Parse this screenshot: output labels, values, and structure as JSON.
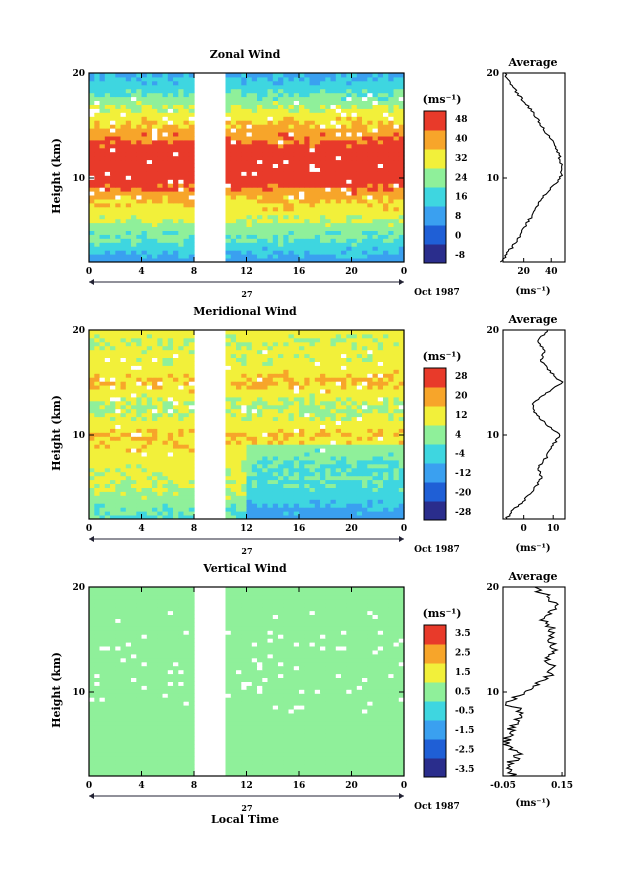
{
  "panels": [
    {
      "title": "Zonal Wind",
      "ylabel": "Height (km)",
      "units": "(ms⁻¹)",
      "xlabel": "",
      "date_label": "27",
      "month_label": "Oct 1987",
      "colorbar_ticks": [
        "48",
        "40",
        "32",
        "24",
        "16",
        "8",
        "0",
        "-8"
      ],
      "average_title": "Average",
      "average_xticks": [
        "20",
        "40"
      ],
      "average_xlabel": "(ms⁻¹)"
    },
    {
      "title": "Meridional Wind",
      "ylabel": "Height (km)",
      "units": "(ms⁻¹)",
      "xlabel": "",
      "date_label": "27",
      "month_label": "Oct 1987",
      "colorbar_ticks": [
        "28",
        "20",
        "12",
        "4",
        "-4",
        "-12",
        "-20",
        "-28"
      ],
      "average_title": "Average",
      "average_xticks": [
        "0",
        "10"
      ],
      "average_xlabel": "(ms⁻¹)"
    },
    {
      "title": "Vertical Wind",
      "ylabel": "Height (km)",
      "units": "(ms⁻¹)",
      "xlabel": "Local Time",
      "date_label": "27",
      "month_label": "Oct 1987",
      "colorbar_ticks": [
        "3.5",
        "2.5",
        "1.5",
        "0.5",
        "-0.5",
        "-1.5",
        "-2.5",
        "-3.5"
      ],
      "average_title": "Average",
      "average_xticks": [
        "-0.05",
        "0.15"
      ],
      "average_xlabel": "(ms⁻¹)"
    }
  ],
  "chart_data": [
    {
      "type": "heatmap",
      "title": "Zonal Wind",
      "xlabel": "",
      "ylabel": "Height (km)",
      "x_ticks": [
        "0",
        "4",
        "8",
        "12",
        "16",
        "20",
        "0"
      ],
      "y_ticks": [
        "20",
        "10"
      ],
      "xlim": [
        0,
        24
      ],
      "ylim": [
        2,
        20
      ],
      "data_gap_hours": [
        8,
        10.5
      ],
      "colorbar_levels": [
        -8,
        0,
        8,
        16,
        24,
        32,
        40,
        48
      ],
      "colors": [
        "#2a2d8c",
        "#1f5fd6",
        "#3aa0f0",
        "#3ed6e0",
        "#8ff09a",
        "#f2f03a",
        "#f7a52a",
        "#e83a2a"
      ],
      "profile": {
        "height": [
          2,
          3,
          4,
          5,
          6,
          7,
          8,
          9,
          10,
          11,
          12,
          13,
          14,
          15,
          16,
          17,
          18,
          19,
          20
        ],
        "value": [
          4,
          9,
          15,
          19,
          24,
          29,
          33,
          40,
          47,
          48,
          46,
          43,
          38,
          33,
          28,
          22,
          16,
          10,
          6
        ]
      },
      "profile_xlim": [
        5,
        50
      ]
    },
    {
      "type": "heatmap",
      "title": "Meridional Wind",
      "xlabel": "",
      "ylabel": "Height (km)",
      "x_ticks": [
        "0",
        "4",
        "8",
        "12",
        "16",
        "20",
        "0"
      ],
      "y_ticks": [
        "20",
        "10"
      ],
      "xlim": [
        0,
        24
      ],
      "ylim": [
        2,
        20
      ],
      "data_gap_hours": [
        8,
        10.5
      ],
      "colorbar_levels": [
        -28,
        -20,
        -12,
        -4,
        4,
        12,
        20,
        28
      ],
      "colors": [
        "#2a2d8c",
        "#1f5fd6",
        "#3aa0f0",
        "#3ed6e0",
        "#8ff09a",
        "#f2f03a",
        "#f7a52a",
        "#e83a2a"
      ],
      "profile": {
        "height": [
          2,
          3,
          4,
          5,
          6,
          7,
          8,
          9,
          10,
          11,
          12,
          13,
          14,
          15,
          16,
          17,
          18,
          19,
          20
        ],
        "value": [
          -6,
          -3,
          1,
          4,
          6,
          5,
          8,
          10,
          12,
          8,
          4,
          3,
          8,
          13,
          9,
          6,
          7,
          5,
          8
        ]
      },
      "profile_xlim": [
        -7,
        14
      ]
    },
    {
      "type": "heatmap",
      "title": "Vertical Wind",
      "xlabel": "Local Time",
      "ylabel": "Height (km)",
      "x_ticks": [
        "0",
        "4",
        "8",
        "12",
        "16",
        "20",
        "0"
      ],
      "y_ticks": [
        "20",
        "10"
      ],
      "xlim": [
        0,
        24
      ],
      "ylim": [
        2,
        20
      ],
      "data_gap_hours": [
        8,
        10.5
      ],
      "colorbar_levels": [
        -3.5,
        -2.5,
        -1.5,
        -0.5,
        0.5,
        1.5,
        2.5,
        3.5
      ],
      "colors": [
        "#2a2d8c",
        "#1f5fd6",
        "#3aa0f0",
        "#3ed6e0",
        "#8ff09a",
        "#f2f03a",
        "#f7a52a",
        "#e83a2a"
      ],
      "profile": {
        "height": [
          2,
          3,
          4,
          5,
          6,
          7,
          8,
          9,
          10,
          11,
          12,
          13,
          14,
          15,
          16,
          17,
          18,
          19,
          20
        ],
        "value": [
          -0.02,
          -0.03,
          0.0,
          -0.04,
          -0.03,
          -0.01,
          0.02,
          -0.04,
          0.04,
          0.08,
          0.12,
          0.1,
          0.13,
          0.11,
          0.12,
          0.09,
          0.14,
          0.1,
          0.06
        ]
      },
      "profile_xlim": [
        -0.05,
        0.16
      ]
    }
  ]
}
